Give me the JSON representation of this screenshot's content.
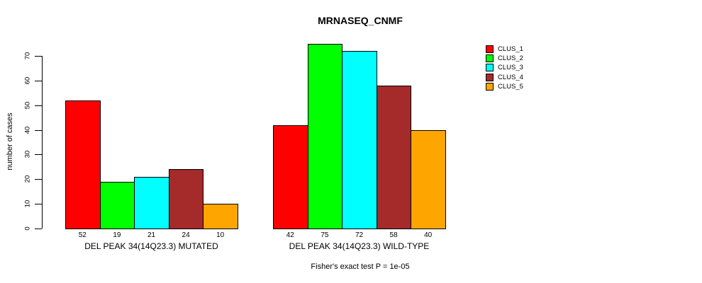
{
  "chart_data": {
    "type": "bar",
    "title": "MRNASEQ_CNMF",
    "xlabel": "",
    "ylabel": "number of cases",
    "categories": [
      "DEL PEAK 34(14Q23.3) MUTATED",
      "DEL PEAK 34(14Q23.3) WILD-TYPE"
    ],
    "series": [
      {
        "name": "CLUS_1",
        "color": "#FF0000",
        "values": [
          52,
          42
        ]
      },
      {
        "name": "CLUS_2",
        "color": "#00FF00",
        "values": [
          19,
          75
        ]
      },
      {
        "name": "CLUS_3",
        "color": "#00FFFF",
        "values": [
          21,
          72
        ]
      },
      {
        "name": "CLUS_4",
        "color": "#A52A2A",
        "values": [
          24,
          58
        ]
      },
      {
        "name": "CLUS_5",
        "color": "#FFA500",
        "values": [
          10,
          40
        ]
      }
    ],
    "yticks": [
      0,
      10,
      20,
      30,
      40,
      50,
      60,
      70
    ],
    "ylim": [
      0,
      78
    ],
    "grid": false,
    "legend_position": "right",
    "bar_value_labels_shown": true,
    "annotation": "Fisher's exact test P = 1e-05"
  },
  "colors": {
    "background": "#FFFFFF",
    "text": "#000000",
    "bar_border": "#000000"
  }
}
